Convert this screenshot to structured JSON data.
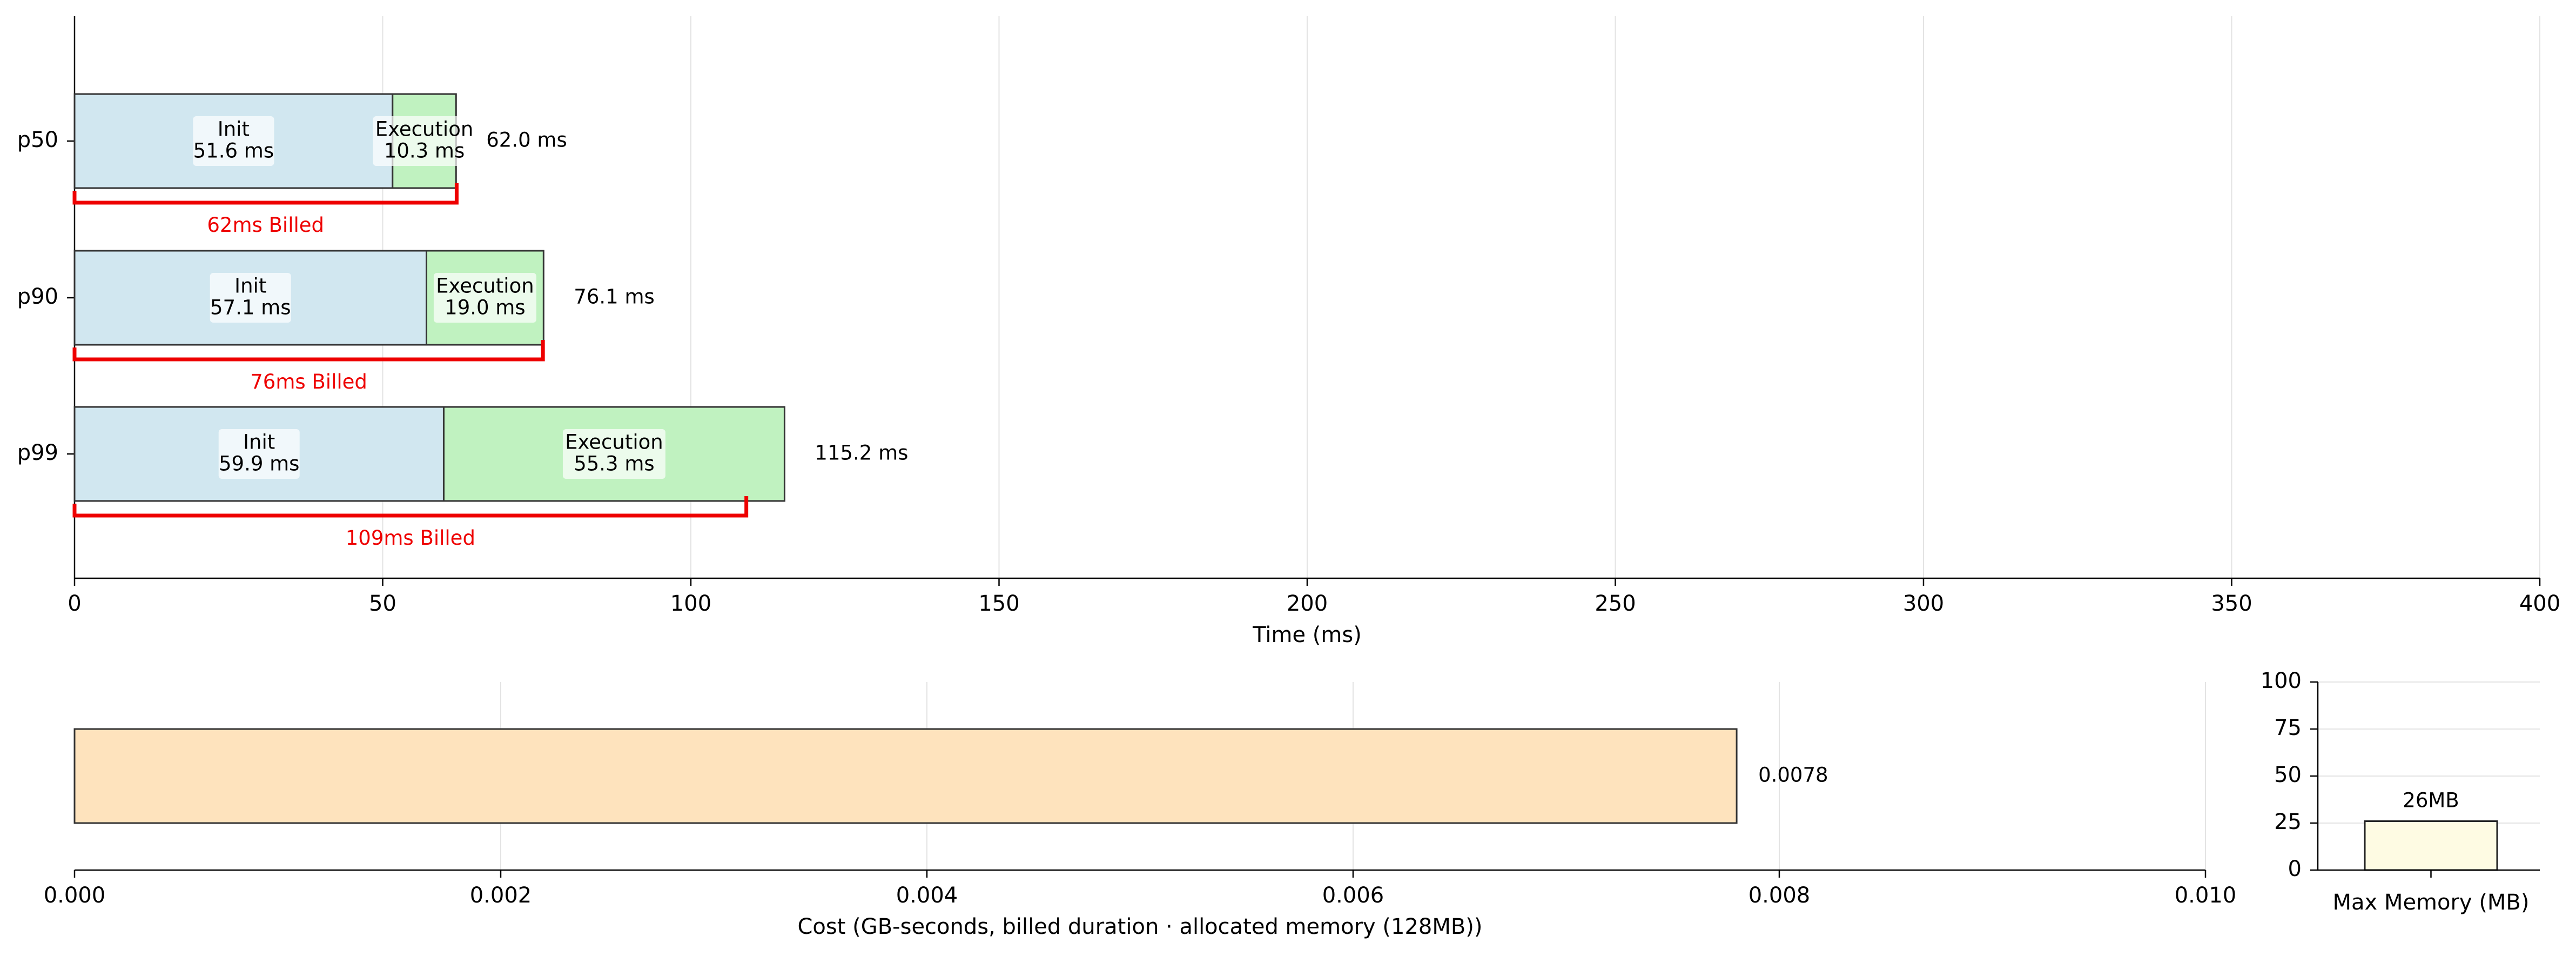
{
  "colors": {
    "init": "#d1e7f0",
    "execution": "#c0f2c0",
    "billed": "#ee0000",
    "cost": "#fee3bd",
    "memory": "#fefbe3",
    "edge": "#333333"
  },
  "chart_data": [
    {
      "type": "bar",
      "orientation": "horizontal",
      "stacked": true,
      "categories": [
        "p50",
        "p90",
        "p99"
      ],
      "series": [
        {
          "name": "Init",
          "values": [
            51.6,
            57.1,
            59.9
          ]
        },
        {
          "name": "Execution",
          "values": [
            10.3,
            19.0,
            55.3
          ]
        }
      ],
      "segment_labels": [
        [
          "Init\n51.6 ms",
          "Execution\n10.3 ms"
        ],
        [
          "Init\n57.1 ms",
          "Execution\n19.0 ms"
        ],
        [
          "Init\n59.9 ms",
          "Execution\n55.3 ms"
        ]
      ],
      "totals": [
        62.0,
        76.1,
        115.2
      ],
      "total_labels": [
        "62.0 ms",
        "76.1 ms",
        "115.2 ms"
      ],
      "billed": [
        62,
        76,
        109
      ],
      "billed_labels": [
        "62ms Billed",
        "76ms Billed",
        "109ms Billed"
      ],
      "xlabel": "Time (ms)",
      "xlim": [
        0,
        400
      ],
      "xticks": [
        0,
        50,
        100,
        150,
        200,
        250,
        300,
        350,
        400
      ],
      "xtick_labels": [
        "0",
        "50",
        "100",
        "150",
        "200",
        "250",
        "300",
        "350",
        "400"
      ],
      "grid": "vertical"
    },
    {
      "type": "bar",
      "orientation": "horizontal",
      "values": [
        0.0078
      ],
      "value_labels": [
        "0.0078"
      ],
      "xlabel": "Cost (GB-seconds, billed duration · allocated memory (128MB))",
      "xlim": [
        0,
        0.01
      ],
      "xticks": [
        0.0,
        0.002,
        0.004,
        0.006,
        0.008,
        0.01
      ],
      "xtick_labels": [
        "0.000",
        "0.002",
        "0.004",
        "0.006",
        "0.008",
        "0.010"
      ],
      "grid": "vertical"
    },
    {
      "type": "bar",
      "categories": [
        "Max Memory (MB)"
      ],
      "values": [
        26
      ],
      "value_labels": [
        "26MB"
      ],
      "ylim": [
        0,
        100
      ],
      "yticks": [
        0,
        25,
        50,
        75,
        100
      ],
      "ytick_labels": [
        "0",
        "25",
        "50",
        "75",
        "100"
      ],
      "grid": "horizontal"
    }
  ]
}
